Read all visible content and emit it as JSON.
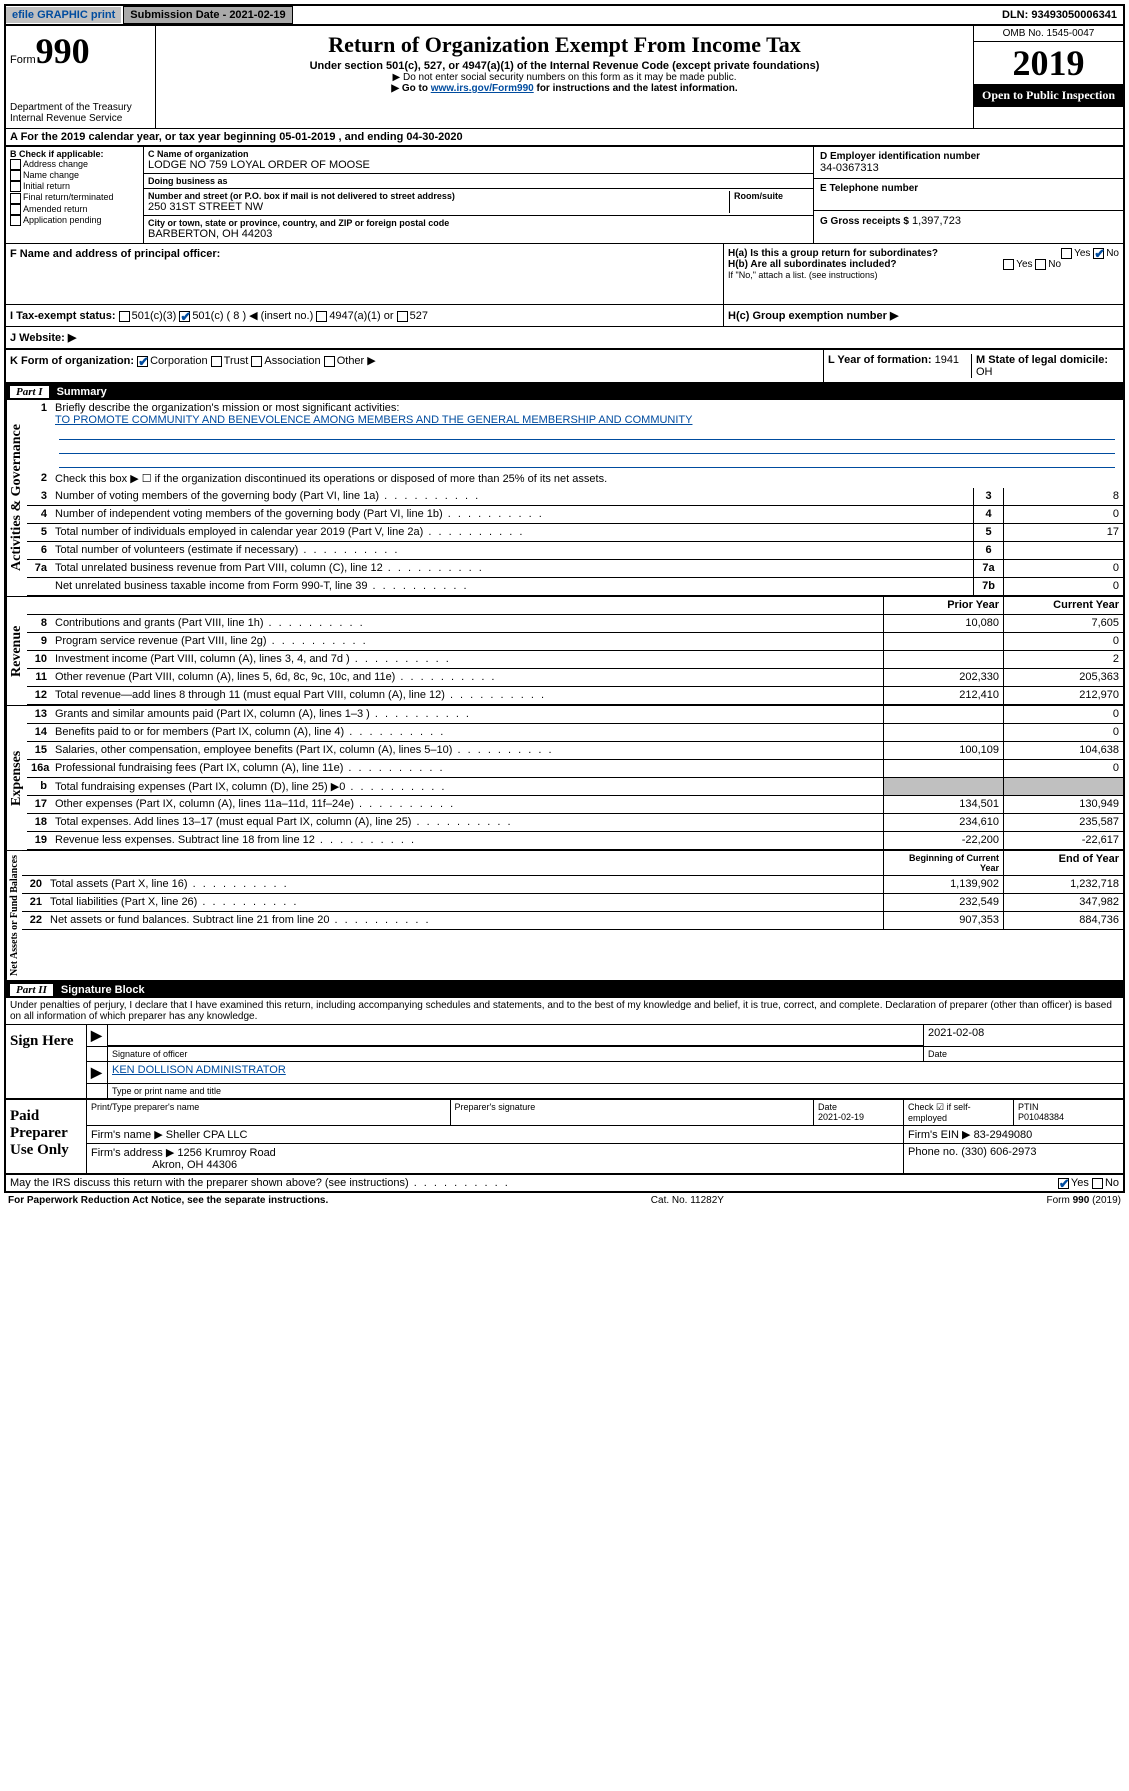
{
  "topbar": {
    "efile": "efile GRAPHIC print",
    "submission_label": "Submission Date - 2021-02-19",
    "dln": "DLN: 93493050006341"
  },
  "header": {
    "form_prefix": "Form",
    "form_number": "990",
    "dept1": "Department of the Treasury",
    "dept2": "Internal Revenue Service",
    "title": "Return of Organization Exempt From Income Tax",
    "subtitle": "Under section 501(c), 527, or 4947(a)(1) of the Internal Revenue Code (except private foundations)",
    "note1": "▶ Do not enter social security numbers on this form as it may be made public.",
    "note2_pre": "▶ Go to ",
    "note2_link": "www.irs.gov/Form990",
    "note2_post": " for instructions and the latest information.",
    "omb": "OMB No. 1545-0047",
    "year": "2019",
    "open": "Open to Public Inspection"
  },
  "period": {
    "text": "A For the 2019 calendar year, or tax year beginning 05-01-2019   , and ending 04-30-2020"
  },
  "boxB": {
    "label": "B Check if applicable:",
    "opt1": "Address change",
    "opt2": "Name change",
    "opt3": "Initial return",
    "opt4": "Final return/terminated",
    "opt5": "Amended return",
    "opt6": "Application pending"
  },
  "boxC": {
    "name_lbl": "C Name of organization",
    "name": "LODGE NO 759 LOYAL ORDER OF MOOSE",
    "dba_lbl": "Doing business as",
    "addr_lbl": "Number and street (or P.O. box if mail is not delivered to street address)",
    "room_lbl": "Room/suite",
    "addr": "250 31ST STREET NW",
    "city_lbl": "City or town, state or province, country, and ZIP or foreign postal code",
    "city": "BARBERTON, OH  44203"
  },
  "boxD": {
    "lbl": "D Employer identification number",
    "val": "34-0367313"
  },
  "boxE": {
    "lbl": "E Telephone number",
    "val": ""
  },
  "boxG": {
    "lbl": "G Gross receipts $",
    "val": "1,397,723"
  },
  "boxF": {
    "lbl": "F Name and address of principal officer:"
  },
  "boxH": {
    "ha": "H(a)  Is this a group return for subordinates?",
    "hb": "H(b)  Are all subordinates included?",
    "hb_note": "If \"No,\" attach a list. (see instructions)",
    "hc": "H(c)  Group exemption number ▶",
    "yes": "Yes",
    "no": "No"
  },
  "boxI": {
    "lbl": "I  Tax-exempt status:",
    "o1": "501(c)(3)",
    "o2": "501(c) ( 8 ) ◀ (insert no.)",
    "o3": "4947(a)(1) or",
    "o4": "527"
  },
  "boxJ": {
    "lbl": "J  Website: ▶"
  },
  "boxK": {
    "lbl": "K Form of organization:",
    "o1": "Corporation",
    "o2": "Trust",
    "o3": "Association",
    "o4": "Other ▶"
  },
  "boxL": {
    "lbl": "L Year of formation:",
    "val": "1941"
  },
  "boxM": {
    "lbl": "M State of legal domicile:",
    "val": "OH"
  },
  "part1": {
    "header": "Summary",
    "l1_lbl": "Briefly describe the organization's mission or most significant activities:",
    "l1_val": "TO PROMOTE COMMUNITY AND BENEVOLENCE AMONG MEMBERS AND THE GENERAL MEMBERSHIP AND COMMUNITY",
    "l2": "Check this box ▶ ☐  if the organization discontinued its operations or disposed of more than 25% of its net assets.",
    "sideA": "Activities & Governance",
    "sideR": "Revenue",
    "sideE": "Expenses",
    "sideN": "Net Assets or Fund Balances",
    "lines_gov": [
      {
        "n": "3",
        "d": "Number of voting members of the governing body (Part VI, line 1a)",
        "nc": "3",
        "v": "8"
      },
      {
        "n": "4",
        "d": "Number of independent voting members of the governing body (Part VI, line 1b)",
        "nc": "4",
        "v": "0"
      },
      {
        "n": "5",
        "d": "Total number of individuals employed in calendar year 2019 (Part V, line 2a)",
        "nc": "5",
        "v": "17"
      },
      {
        "n": "6",
        "d": "Total number of volunteers (estimate if necessary)",
        "nc": "6",
        "v": ""
      },
      {
        "n": "7a",
        "d": "Total unrelated business revenue from Part VIII, column (C), line 12",
        "nc": "7a",
        "v": "0"
      },
      {
        "n": "",
        "d": "Net unrelated business taxable income from Form 990-T, line 39",
        "nc": "7b",
        "v": "0"
      }
    ],
    "col_prior": "Prior Year",
    "col_current": "Current Year",
    "lines_rev": [
      {
        "n": "8",
        "d": "Contributions and grants (Part VIII, line 1h)",
        "p": "10,080",
        "c": "7,605"
      },
      {
        "n": "9",
        "d": "Program service revenue (Part VIII, line 2g)",
        "p": "",
        "c": "0"
      },
      {
        "n": "10",
        "d": "Investment income (Part VIII, column (A), lines 3, 4, and 7d )",
        "p": "",
        "c": "2"
      },
      {
        "n": "11",
        "d": "Other revenue (Part VIII, column (A), lines 5, 6d, 8c, 9c, 10c, and 11e)",
        "p": "202,330",
        "c": "205,363"
      },
      {
        "n": "12",
        "d": "Total revenue—add lines 8 through 11 (must equal Part VIII, column (A), line 12)",
        "p": "212,410",
        "c": "212,970"
      }
    ],
    "lines_exp": [
      {
        "n": "13",
        "d": "Grants and similar amounts paid (Part IX, column (A), lines 1–3 )",
        "p": "",
        "c": "0"
      },
      {
        "n": "14",
        "d": "Benefits paid to or for members (Part IX, column (A), line 4)",
        "p": "",
        "c": "0"
      },
      {
        "n": "15",
        "d": "Salaries, other compensation, employee benefits (Part IX, column (A), lines 5–10)",
        "p": "100,109",
        "c": "104,638"
      },
      {
        "n": "16a",
        "d": "Professional fundraising fees (Part IX, column (A), line 11e)",
        "p": "",
        "c": "0"
      },
      {
        "n": "b",
        "d": "Total fundraising expenses (Part IX, column (D), line 25) ▶0",
        "p": "",
        "c": ""
      },
      {
        "n": "17",
        "d": "Other expenses (Part IX, column (A), lines 11a–11d, 11f–24e)",
        "p": "134,501",
        "c": "130,949"
      },
      {
        "n": "18",
        "d": "Total expenses. Add lines 13–17 (must equal Part IX, column (A), line 25)",
        "p": "234,610",
        "c": "235,587"
      },
      {
        "n": "19",
        "d": "Revenue less expenses. Subtract line 18 from line 12",
        "p": "-22,200",
        "c": "-22,617"
      }
    ],
    "col_begin": "Beginning of Current Year",
    "col_end": "End of Year",
    "lines_net": [
      {
        "n": "20",
        "d": "Total assets (Part X, line 16)",
        "p": "1,139,902",
        "c": "1,232,718"
      },
      {
        "n": "21",
        "d": "Total liabilities (Part X, line 26)",
        "p": "232,549",
        "c": "347,982"
      },
      {
        "n": "22",
        "d": "Net assets or fund balances. Subtract line 21 from line 20",
        "p": "907,353",
        "c": "884,736"
      }
    ]
  },
  "part2": {
    "header": "Signature Block",
    "perjury": "Under penalties of perjury, I declare that I have examined this return, including accompanying schedules and statements, and to the best of my knowledge and belief, it is true, correct, and complete. Declaration of preparer (other than officer) is based on all information of which preparer has any knowledge.",
    "sign_here": "Sign Here",
    "sig_officer": "Signature of officer",
    "sig_date": "2021-02-08",
    "date_lbl": "Date",
    "officer_name": "KEN DOLLISON  ADMINISTRATOR",
    "type_lbl": "Type or print name and title",
    "paid": "Paid Preparer Use Only",
    "p_name_lbl": "Print/Type preparer's name",
    "p_sig_lbl": "Preparer's signature",
    "p_date_lbl": "Date",
    "p_date": "2021-02-19",
    "p_check_lbl": "Check ☑ if self-employed",
    "ptin_lbl": "PTIN",
    "ptin": "P01048384",
    "firm_name_lbl": "Firm's name   ▶",
    "firm_name": "Sheller CPA LLC",
    "firm_ein_lbl": "Firm's EIN ▶",
    "firm_ein": "83-2949080",
    "firm_addr_lbl": "Firm's address ▶",
    "firm_addr": "1256 Krumroy Road",
    "firm_city": "Akron, OH  44306",
    "phone_lbl": "Phone no.",
    "phone": "(330) 606-2973",
    "discuss": "May the IRS discuss this return with the preparer shown above? (see instructions)",
    "yes": "Yes",
    "no": "No"
  },
  "footer": {
    "pra": "For Paperwork Reduction Act Notice, see the separate instructions.",
    "cat": "Cat. No. 11282Y",
    "form": "Form 990 (2019)"
  }
}
